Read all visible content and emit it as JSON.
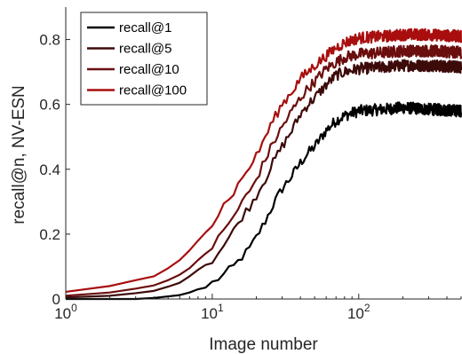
{
  "chart_data": {
    "type": "line",
    "xlabel": "Image number",
    "ylabel": "recall@n, NV-ESN",
    "xscale": "log",
    "xlim": [
      1,
      500
    ],
    "ylim": [
      0,
      0.9
    ],
    "x_ticks": [
      {
        "value": 1,
        "base": "10",
        "exp": "0"
      },
      {
        "value": 10,
        "base": "10",
        "exp": "1"
      },
      {
        "value": 100,
        "base": "10",
        "exp": "2"
      }
    ],
    "y_ticks": [
      {
        "value": 0,
        "label": "0"
      },
      {
        "value": 0.2,
        "label": "0.2"
      },
      {
        "value": 0.4,
        "label": "0.4"
      },
      {
        "value": 0.6,
        "label": "0.6"
      },
      {
        "value": 0.8,
        "label": "0.8"
      }
    ],
    "grid": false,
    "legend_position": "top-left",
    "series": [
      {
        "name": "recall@1",
        "color": "#000000",
        "points": [
          [
            1,
            0
          ],
          [
            2,
            0
          ],
          [
            3,
            0
          ],
          [
            4,
            0.003
          ],
          [
            5,
            0.008
          ],
          [
            6,
            0.012
          ],
          [
            7,
            0.02
          ],
          [
            8,
            0.03
          ],
          [
            9,
            0.035
          ],
          [
            10,
            0.05
          ],
          [
            12,
            0.075
          ],
          [
            14,
            0.1
          ],
          [
            16,
            0.13
          ],
          [
            18,
            0.155
          ],
          [
            20,
            0.19
          ],
          [
            23,
            0.24
          ],
          [
            26,
            0.29
          ],
          [
            30,
            0.34
          ],
          [
            35,
            0.38
          ],
          [
            40,
            0.42
          ],
          [
            45,
            0.45
          ],
          [
            50,
            0.47
          ],
          [
            60,
            0.52
          ],
          [
            70,
            0.55
          ],
          [
            80,
            0.565
          ],
          [
            100,
            0.58
          ],
          [
            150,
            0.585
          ],
          [
            200,
            0.59
          ],
          [
            300,
            0.585
          ],
          [
            500,
            0.58
          ]
        ]
      },
      {
        "name": "recall@5",
        "color": "#3d0a0a",
        "points": [
          [
            1,
            0.005
          ],
          [
            2,
            0.01
          ],
          [
            3,
            0.018
          ],
          [
            4,
            0.025
          ],
          [
            5,
            0.038
          ],
          [
            6,
            0.05
          ],
          [
            7,
            0.07
          ],
          [
            8,
            0.09
          ],
          [
            9,
            0.105
          ],
          [
            10,
            0.12
          ],
          [
            12,
            0.165
          ],
          [
            14,
            0.21
          ],
          [
            16,
            0.255
          ],
          [
            18,
            0.285
          ],
          [
            20,
            0.32
          ],
          [
            23,
            0.37
          ],
          [
            26,
            0.42
          ],
          [
            30,
            0.47
          ],
          [
            35,
            0.52
          ],
          [
            40,
            0.57
          ],
          [
            45,
            0.6
          ],
          [
            50,
            0.62
          ],
          [
            60,
            0.66
          ],
          [
            70,
            0.69
          ],
          [
            80,
            0.7
          ],
          [
            100,
            0.71
          ],
          [
            150,
            0.715
          ],
          [
            200,
            0.72
          ],
          [
            300,
            0.72
          ],
          [
            500,
            0.715
          ]
        ]
      },
      {
        "name": "recall@10",
        "color": "#6b0e0e",
        "points": [
          [
            1,
            0.01
          ],
          [
            2,
            0.02
          ],
          [
            3,
            0.032
          ],
          [
            4,
            0.042
          ],
          [
            5,
            0.058
          ],
          [
            6,
            0.075
          ],
          [
            7,
            0.095
          ],
          [
            8,
            0.12
          ],
          [
            9,
            0.14
          ],
          [
            10,
            0.16
          ],
          [
            12,
            0.21
          ],
          [
            14,
            0.255
          ],
          [
            16,
            0.3
          ],
          [
            18,
            0.33
          ],
          [
            20,
            0.37
          ],
          [
            23,
            0.43
          ],
          [
            26,
            0.48
          ],
          [
            30,
            0.53
          ],
          [
            35,
            0.58
          ],
          [
            40,
            0.62
          ],
          [
            45,
            0.65
          ],
          [
            50,
            0.67
          ],
          [
            60,
            0.71
          ],
          [
            70,
            0.73
          ],
          [
            80,
            0.745
          ],
          [
            100,
            0.755
          ],
          [
            150,
            0.76
          ],
          [
            200,
            0.765
          ],
          [
            300,
            0.765
          ],
          [
            500,
            0.76
          ]
        ]
      },
      {
        "name": "recall@100",
        "color": "#a80e0e",
        "points": [
          [
            1,
            0.022
          ],
          [
            2,
            0.04
          ],
          [
            3,
            0.058
          ],
          [
            4,
            0.07
          ],
          [
            5,
            0.095
          ],
          [
            6,
            0.12
          ],
          [
            7,
            0.15
          ],
          [
            8,
            0.18
          ],
          [
            9,
            0.205
          ],
          [
            10,
            0.23
          ],
          [
            12,
            0.29
          ],
          [
            14,
            0.33
          ],
          [
            16,
            0.37
          ],
          [
            18,
            0.41
          ],
          [
            20,
            0.44
          ],
          [
            23,
            0.5
          ],
          [
            26,
            0.55
          ],
          [
            30,
            0.6
          ],
          [
            35,
            0.64
          ],
          [
            40,
            0.68
          ],
          [
            45,
            0.7
          ],
          [
            50,
            0.72
          ],
          [
            60,
            0.75
          ],
          [
            70,
            0.775
          ],
          [
            80,
            0.79
          ],
          [
            100,
            0.805
          ],
          [
            150,
            0.81
          ],
          [
            200,
            0.815
          ],
          [
            300,
            0.815
          ],
          [
            500,
            0.81
          ]
        ]
      }
    ]
  }
}
